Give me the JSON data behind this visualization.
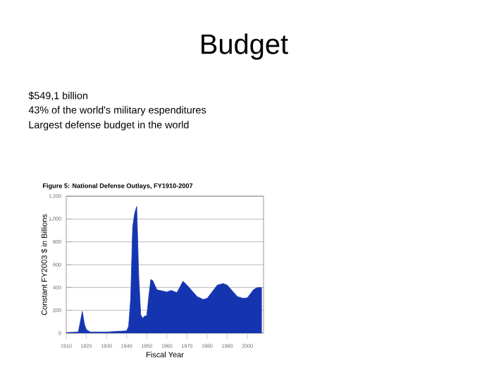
{
  "chart_data": {
    "type": "area",
    "title": "Budget",
    "subtitle": "Figure 5: National Defense Outlays, FY1910-2007",
    "annotations": [
      "$549,1 billion",
      "43% of the world's military espenditures",
      "Largest defense budget in the world"
    ],
    "xlabel": "Fiscal Year",
    "ylabel": "Constant FY2003 $ in Billions",
    "x": [
      1910,
      1916,
      1917,
      1918,
      1919,
      1920,
      1922,
      1930,
      1935,
      1940,
      1941,
      1942,
      1943,
      1944,
      1945,
      1946,
      1947,
      1948,
      1949,
      1950,
      1951,
      1952,
      1953,
      1955,
      1960,
      1962,
      1965,
      1968,
      1970,
      1975,
      1978,
      1980,
      1985,
      1988,
      1990,
      1995,
      1998,
      2000,
      2003,
      2005,
      2007
    ],
    "values": [
      5,
      10,
      100,
      190,
      80,
      30,
      10,
      10,
      15,
      20,
      60,
      300,
      930,
      1050,
      1110,
      500,
      160,
      130,
      150,
      150,
      320,
      470,
      460,
      380,
      360,
      375,
      355,
      455,
      420,
      320,
      295,
      305,
      420,
      435,
      420,
      320,
      305,
      310,
      380,
      400,
      400
    ],
    "color": "#1535b0",
    "xlim": [
      1910,
      2008
    ],
    "xticks": [
      1910,
      1920,
      1930,
      1940,
      1950,
      1960,
      1970,
      1980,
      1990,
      2000
    ],
    "ylim": [
      0,
      1200
    ],
    "yticks": [
      0,
      200,
      400,
      600,
      800,
      {
        "value": 1000,
        "label": "1,000"
      },
      {
        "value": 1200,
        "label": "1,200"
      }
    ],
    "grid": "y"
  }
}
